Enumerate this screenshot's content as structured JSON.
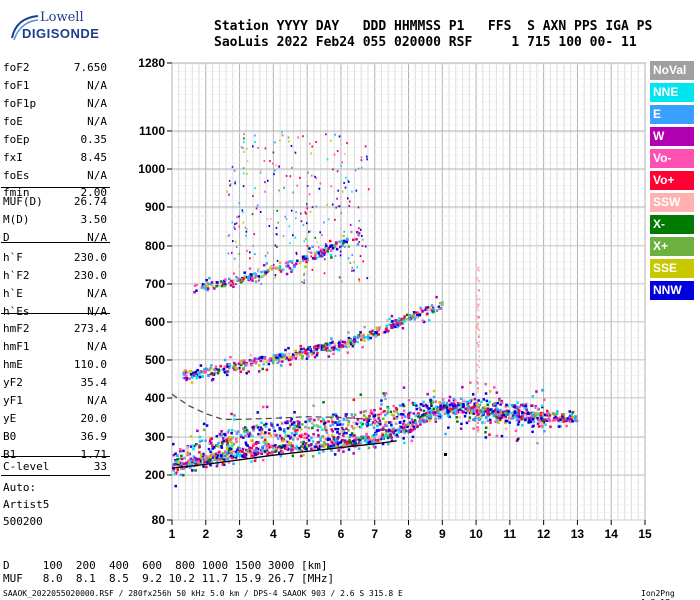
{
  "logo": {
    "line1": "Lowell",
    "line2": "DIGISONDE"
  },
  "header": {
    "line1": "Station YYYY DAY   DDD HHMMSS P1   FFS  S AXN PPS IGA PS",
    "line2": "SaoLuis 2022 Feb24 055 020000 RSF     1 715 100 00- 11"
  },
  "params": [
    {
      "k": "foF2",
      "v": "7.650"
    },
    {
      "k": "foF1",
      "v": "N/A"
    },
    {
      "k": "foF1p",
      "v": "N/A"
    },
    {
      "k": "foE",
      "v": "N/A"
    },
    {
      "k": "foEp",
      "v": "0.35"
    },
    {
      "k": "fxI",
      "v": "8.45"
    },
    {
      "k": "foEs",
      "v": "N/A"
    },
    {
      "k": "fmin",
      "v": "2.00"
    },
    {
      "k": "MUF(D)",
      "v": "26.74"
    },
    {
      "k": "M(D)",
      "v": "3.50"
    },
    {
      "k": "D",
      "v": "N/A"
    },
    {
      "k": "h`F",
      "v": "230.0"
    },
    {
      "k": "h`F2",
      "v": "230.0"
    },
    {
      "k": "h`E",
      "v": "N/A"
    },
    {
      "k": "h`Es",
      "v": "N/A"
    },
    {
      "k": "hmF2",
      "v": "273.4"
    },
    {
      "k": "hmF1",
      "v": "N/A"
    },
    {
      "k": "hmE",
      "v": "110.0"
    },
    {
      "k": "yF2",
      "v": "35.4"
    },
    {
      "k": "yF1",
      "v": "N/A"
    },
    {
      "k": "yE",
      "v": "20.0"
    },
    {
      "k": "B0",
      "v": "36.9"
    },
    {
      "k": "B1",
      "v": "1.71"
    },
    {
      "k": "C-level",
      "v": "33"
    }
  ],
  "notes": {
    "line1": "Auto:",
    "line2": "Artist5",
    "line3": "500200"
  },
  "legend": [
    {
      "label": "NoVal",
      "color": "#a0a0a0"
    },
    {
      "label": "NNE",
      "color": "#00e5ee"
    },
    {
      "label": "E",
      "color": "#3aa0ff"
    },
    {
      "label": "W",
      "color": "#b000b0"
    },
    {
      "label": "Vo-",
      "color": "#ff4fb0"
    },
    {
      "label": "Vo+",
      "color": "#ff0033"
    },
    {
      "label": "SSW",
      "color": "#ffb0b0"
    },
    {
      "label": "X-",
      "color": "#007a00"
    },
    {
      "label": "X+",
      "color": "#6cb040"
    },
    {
      "label": "SSE",
      "color": "#c8c800"
    },
    {
      "label": "NNW",
      "color": "#0000dd"
    }
  ],
  "bottom": {
    "line1": "D     100  200  400  600  800 1000 1500 3000 [km]",
    "line2": "MUF   8.0  8.1  8.5  9.2 10.2 11.7 15.9 26.7 [MHz]"
  },
  "footer": "SAAOK_2022055020000.RSF / 280fx256h 50 kHz 5.0 km / DPS-4 SAAOK 903 / 2.6 S 315.8 E",
  "version": "Ion2Png 1.3.17",
  "chart_data": {
    "type": "scatter",
    "x_ticks": [
      "1",
      "2",
      "3",
      "4",
      "5",
      "6",
      "7",
      "8",
      "9",
      "10",
      "11",
      "12",
      "13",
      "14",
      "15"
    ],
    "y_ticks": [
      "80",
      "200",
      "300",
      "400",
      "500",
      "600",
      "700",
      "800",
      "900",
      "1000",
      "1100",
      "1280"
    ],
    "xlim": [
      1,
      15
    ],
    "ylim": [
      80,
      1280
    ],
    "grid": true,
    "y_scale": "nonlinear (height labels at tick positions)",
    "y_tick_values": [
      80,
      200,
      300,
      400,
      500,
      600,
      700,
      800,
      900,
      1000,
      1100,
      1280
    ],
    "traces": [
      {
        "name": "O-trace",
        "x": [
          1.0,
          1.5,
          2.0,
          3.0,
          4.0,
          5.0,
          6.0,
          7.0,
          7.5,
          8.0,
          8.5,
          9.0,
          10.0,
          11.0,
          12.0,
          13.0
        ],
        "y": [
          222,
          235,
          245,
          260,
          270,
          278,
          285,
          300,
          310,
          325,
          355,
          380,
          370,
          360,
          355,
          350
        ]
      },
      {
        "name": "2nd-hop",
        "x": [
          1.3,
          2.0,
          3.0,
          4.0,
          5.0,
          6.0,
          7.0,
          8.0,
          9.0
        ],
        "y": [
          460,
          470,
          490,
          505,
          525,
          545,
          575,
          615,
          650
        ]
      },
      {
        "name": "3rd-hop",
        "x": [
          1.6,
          2.5,
          3.5,
          4.5,
          5.5,
          6.5
        ],
        "y": [
          690,
          705,
          725,
          755,
          790,
          830
        ]
      },
      {
        "name": "Spread-F",
        "x": [
          1.0,
          1.5,
          2.0,
          3.0,
          4.0,
          5.0,
          6.0,
          7.0,
          8.0,
          9.0,
          10.0,
          11.0,
          12.0
        ],
        "y": [
          240,
          250,
          270,
          300,
          310,
          320,
          330,
          345,
          360,
          380,
          370,
          365,
          355
        ]
      }
    ],
    "profile_solid": {
      "x": [
        1.0,
        2.0,
        3.0,
        4.0,
        5.0,
        6.0,
        7.0,
        7.5,
        7.65
      ],
      "y": [
        218,
        228,
        240,
        252,
        262,
        272,
        282,
        288,
        290
      ]
    },
    "profile_dashed": {
      "x": [
        1.0,
        1.5,
        2.0,
        2.5,
        3.0,
        4.0,
        5.0,
        6.0,
        7.0,
        7.5
      ],
      "y": [
        410,
        380,
        360,
        345,
        345,
        348,
        352,
        350,
        345,
        300
      ]
    }
  }
}
